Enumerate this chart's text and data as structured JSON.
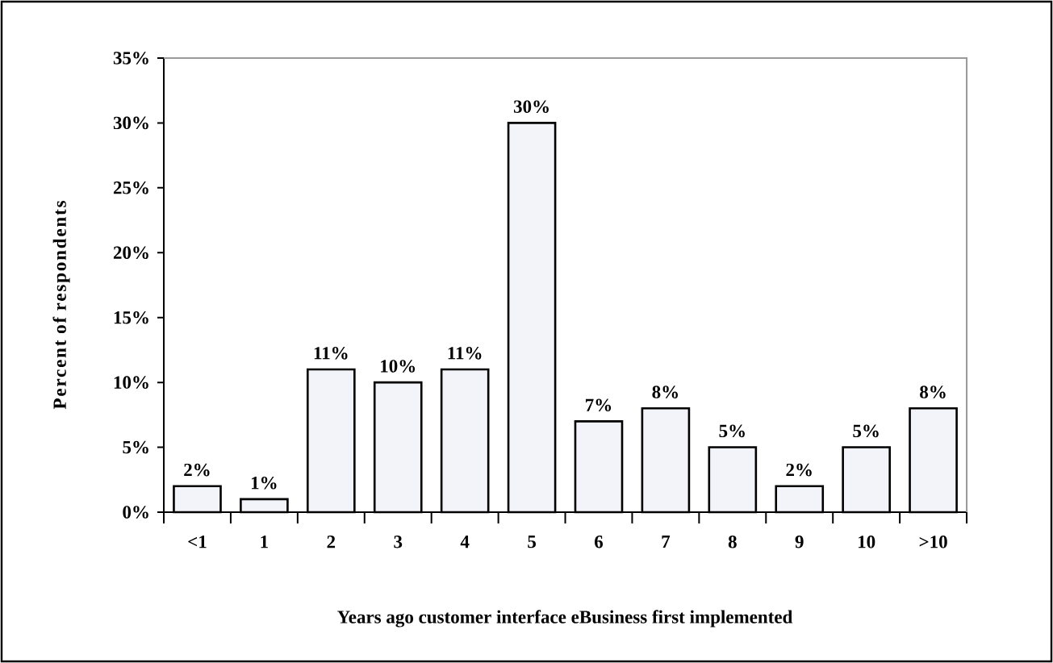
{
  "chart_data": {
    "type": "bar",
    "xlabel": "Years ago customer interface eBusiness first implemented",
    "ylabel": "Percent of respondents",
    "categories": [
      "<1",
      "1",
      "2",
      "3",
      "4",
      "5",
      "6",
      "7",
      "8",
      "9",
      "10",
      ">10"
    ],
    "values": [
      2,
      1,
      11,
      10,
      11,
      30,
      7,
      8,
      5,
      2,
      5,
      8
    ],
    "value_labels": [
      "2%",
      "1%",
      "11%",
      "10%",
      "11%",
      "30%",
      "7%",
      "8%",
      "5%",
      "2%",
      "5%",
      "8%"
    ],
    "color": "#f3f3fa",
    "ylim": [
      0,
      35
    ],
    "yticks": [
      {
        "value": 0,
        "label": "0%"
      },
      {
        "value": 5,
        "label": "5%"
      },
      {
        "value": 10,
        "label": "10%"
      },
      {
        "value": 15,
        "label": "15%"
      },
      {
        "value": 20,
        "label": "20%"
      },
      {
        "value": 25,
        "label": "25%"
      },
      {
        "value": 30,
        "label": "30%"
      },
      {
        "value": 35,
        "label": "35%"
      }
    ]
  }
}
